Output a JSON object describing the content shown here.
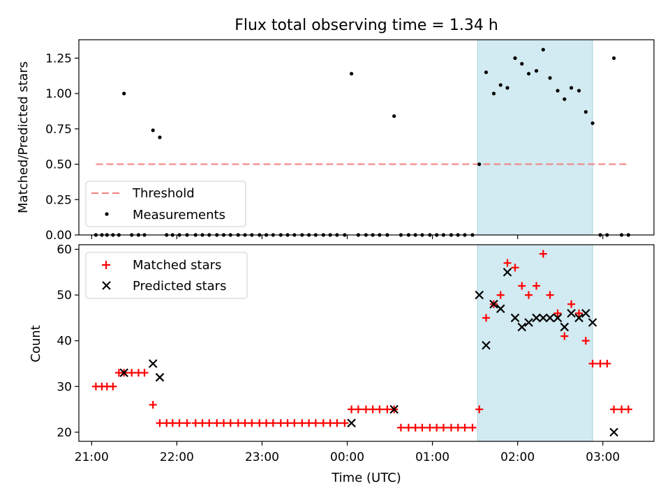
{
  "figure_title": "Flux total observing time = 1.34 h",
  "colors": {
    "threshold": "#f08080",
    "matched": "#ff0000",
    "predicted": "#000000",
    "measurement": "#000000",
    "highlight": "#add8e6"
  },
  "chart_data": [
    {
      "type": "scatter",
      "panel": "top",
      "ylabel": "Matched/Predicted stars",
      "xlabel": "",
      "ylim": [
        0,
        1.38
      ],
      "yticks": [
        0.0,
        0.25,
        0.5,
        0.75,
        1.0,
        1.25
      ],
      "ytick_labels": [
        "0.00",
        "0.25",
        "0.50",
        "0.75",
        "1.00",
        "1.25"
      ],
      "xlim_hours": [
        20.85,
        27.6
      ],
      "highlight_span_hours": [
        25.53,
        26.88
      ],
      "legend": {
        "placement": "lower-left",
        "entries": [
          "Threshold",
          "Measurements"
        ]
      },
      "threshold": {
        "name": "Threshold",
        "value": 0.5,
        "x_start_hours": 21.05,
        "x_end_hours": 27.3
      },
      "series": [
        {
          "name": "Measurements",
          "marker": "dot",
          "x_hours": [
            21.05,
            21.12,
            21.18,
            21.25,
            21.32,
            21.38,
            21.47,
            21.55,
            21.62,
            21.72,
            21.8,
            21.88,
            21.95,
            22.03,
            22.12,
            22.22,
            22.3,
            22.38,
            22.47,
            22.55,
            22.63,
            22.72,
            22.8,
            22.88,
            22.97,
            23.05,
            23.13,
            23.22,
            23.3,
            23.38,
            23.47,
            23.55,
            23.63,
            23.72,
            23.8,
            23.88,
            23.97,
            24.05,
            24.13,
            24.22,
            24.3,
            24.38,
            24.47,
            24.55,
            24.63,
            24.72,
            24.8,
            24.88,
            24.97,
            25.05,
            25.13,
            25.22,
            25.3,
            25.38,
            25.47,
            25.55,
            25.63,
            25.72,
            25.8,
            25.88,
            25.97,
            26.05,
            26.13,
            26.22,
            26.3,
            26.38,
            26.47,
            26.55,
            26.63,
            26.72,
            26.8,
            26.88,
            26.97,
            27.05,
            27.13,
            27.22,
            27.3
          ],
          "values": [
            0,
            0,
            0,
            0,
            0,
            1.0,
            0,
            0,
            0,
            0.74,
            0.69,
            0,
            0,
            0,
            0,
            0,
            0,
            0,
            0,
            0,
            0,
            0,
            0,
            0,
            0,
            0,
            0,
            0,
            0,
            0,
            0,
            0,
            0,
            0,
            0,
            0,
            0,
            1.14,
            0,
            0,
            0,
            0,
            0,
            0.84,
            0,
            0,
            0,
            0,
            0,
            0,
            0,
            0,
            0,
            0,
            0,
            0.5,
            1.15,
            1.0,
            1.06,
            1.04,
            1.25,
            1.21,
            1.14,
            1.16,
            1.31,
            1.11,
            1.02,
            0.96,
            1.04,
            1.02,
            0.87,
            0.79,
            0,
            0,
            1.25,
            0,
            0
          ]
        }
      ]
    },
    {
      "type": "scatter",
      "panel": "bottom",
      "ylabel": "Count",
      "xlabel": "Time (UTC)",
      "ylim": [
        18,
        61
      ],
      "yticks": [
        20,
        30,
        40,
        50,
        60
      ],
      "ytick_labels": [
        "20",
        "30",
        "40",
        "50",
        "60"
      ],
      "xlim_hours": [
        20.85,
        27.6
      ],
      "xticks_hours": [
        21,
        22,
        23,
        24,
        25,
        26,
        27
      ],
      "xtick_labels": [
        "21:00",
        "22:00",
        "23:00",
        "00:00",
        "01:00",
        "02:00",
        "03:00"
      ],
      "highlight_span_hours": [
        25.53,
        26.88
      ],
      "legend": {
        "placement": "top-left",
        "entries": [
          "Matched stars",
          "Predicted stars"
        ]
      },
      "series": [
        {
          "name": "Matched stars",
          "marker": "plus",
          "x_hours": [
            21.05,
            21.12,
            21.18,
            21.25,
            21.32,
            21.38,
            21.47,
            21.55,
            21.62,
            21.72,
            21.8,
            21.88,
            21.95,
            22.03,
            22.12,
            22.22,
            22.3,
            22.38,
            22.47,
            22.55,
            22.63,
            22.72,
            22.8,
            22.88,
            22.97,
            23.05,
            23.13,
            23.22,
            23.3,
            23.38,
            23.47,
            23.55,
            23.63,
            23.72,
            23.8,
            23.88,
            23.97,
            24.05,
            24.13,
            24.22,
            24.3,
            24.38,
            24.47,
            24.55,
            24.63,
            24.72,
            24.8,
            24.88,
            24.97,
            25.05,
            25.13,
            25.22,
            25.3,
            25.38,
            25.47,
            25.55,
            25.63,
            25.72,
            25.8,
            25.88,
            25.97,
            26.05,
            26.13,
            26.22,
            26.3,
            26.38,
            26.47,
            26.55,
            26.63,
            26.72,
            26.8,
            26.88,
            26.97,
            27.05,
            27.13,
            27.22,
            27.3
          ],
          "values": [
            30,
            30,
            30,
            30,
            33,
            33,
            33,
            33,
            33,
            26,
            22,
            22,
            22,
            22,
            22,
            22,
            22,
            22,
            22,
            22,
            22,
            22,
            22,
            22,
            22,
            22,
            22,
            22,
            22,
            22,
            22,
            22,
            22,
            22,
            22,
            22,
            22,
            25,
            25,
            25,
            25,
            25,
            25,
            25,
            21,
            21,
            21,
            21,
            21,
            21,
            21,
            21,
            21,
            21,
            21,
            25,
            45,
            48,
            50,
            57,
            56,
            52,
            50,
            52,
            59,
            50,
            46,
            41,
            48,
            46,
            40,
            35,
            35,
            35,
            25,
            25,
            25
          ]
        },
        {
          "name": "Predicted stars",
          "marker": "x",
          "x_hours": [
            21.38,
            21.72,
            21.8,
            24.05,
            24.55,
            25.55,
            25.63,
            25.72,
            25.8,
            25.88,
            25.97,
            26.05,
            26.13,
            26.22,
            26.3,
            26.38,
            26.47,
            26.55,
            26.63,
            26.72,
            26.8,
            26.88,
            27.13
          ],
          "values": [
            33,
            35,
            32,
            22,
            25,
            50,
            39,
            48,
            47,
            55,
            45,
            43,
            44,
            45,
            45,
            45,
            45,
            43,
            46,
            45,
            46,
            44,
            20
          ]
        }
      ]
    }
  ]
}
